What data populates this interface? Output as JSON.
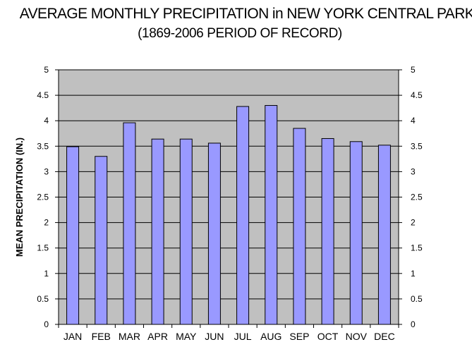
{
  "chart_data": {
    "type": "bar",
    "title": "AVERAGE MONTHLY PRECIPITATION in NEW YORK CENTRAL PARK",
    "subtitle": "(1869-2006 PERIOD OF RECORD)",
    "ylabel": "MEAN PRECIPITATION (IN.)",
    "xlabel": "",
    "categories": [
      "JAN",
      "FEB",
      "MAR",
      "APR",
      "MAY",
      "JUN",
      "JUL",
      "AUG",
      "SEP",
      "OCT",
      "NOV",
      "DEC"
    ],
    "values": [
      3.49,
      3.3,
      3.96,
      3.64,
      3.64,
      3.56,
      4.28,
      4.3,
      3.85,
      3.65,
      3.59,
      3.52
    ],
    "ylim": [
      0,
      5
    ],
    "yticks": [
      "0",
      "0.5",
      "1",
      "1.5",
      "2",
      "2.5",
      "3",
      "3.5",
      "4",
      "4.5",
      "5"
    ],
    "grid": true,
    "secondary_y_axis": true,
    "colors": {
      "bar_fill": "#9999ff",
      "bar_stroke": "#000000",
      "plot_background": "#c0c0c0",
      "gridline": "#000000"
    }
  }
}
